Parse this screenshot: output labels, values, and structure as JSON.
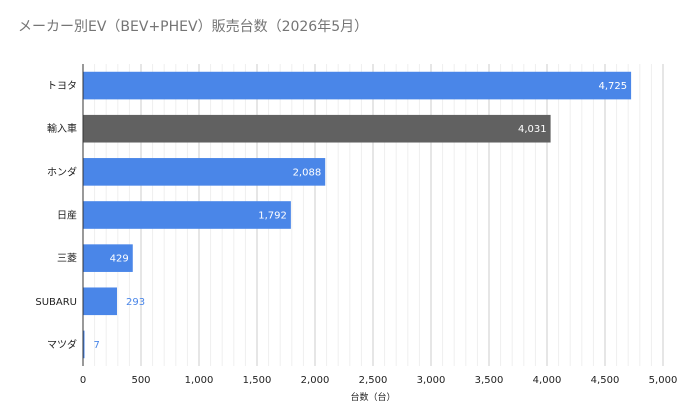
{
  "chart_data": {
    "type": "bar",
    "orientation": "horizontal",
    "title": "メーカー別EV（BEV+PHEV）販売台数（2026年5月）",
    "xlabel": "台数（台）",
    "ylabel": "",
    "categories": [
      "トヨタ",
      "輸入車",
      "ホンダ",
      "日産",
      "三菱",
      "SUBARU",
      "マツダ"
    ],
    "values": [
      4725,
      4031,
      2088,
      1792,
      429,
      293,
      7
    ],
    "value_labels": [
      "4,725",
      "4,031",
      "2,088",
      "1,792",
      "429",
      "293",
      "7"
    ],
    "bar_colors": [
      "#4a86e8",
      "#616161",
      "#4a86e8",
      "#4a86e8",
      "#4a86e8",
      "#4a86e8",
      "#4a86e8"
    ],
    "xlim": [
      0,
      5000
    ],
    "xticks": [
      0,
      500,
      1000,
      1500,
      2000,
      2500,
      3000,
      3500,
      4000,
      4500,
      5000
    ],
    "xtick_labels": [
      "0",
      "500",
      "1,000",
      "1,500",
      "2,000",
      "2,500",
      "3,000",
      "3,500",
      "4,000",
      "4,500",
      "5,000"
    ],
    "grid": true,
    "minor_grid": true,
    "legend": "none"
  }
}
